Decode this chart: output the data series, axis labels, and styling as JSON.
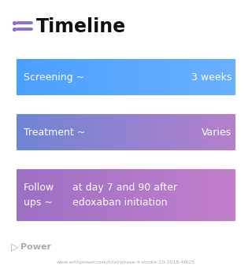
{
  "title": "Timeline",
  "title_icon_color": "#8B6FD4",
  "background_color": "#ffffff",
  "rows": [
    {
      "left_text": "Screening ~",
      "right_text": "3 weeks",
      "color_start": "#4A9FFF",
      "color_end": "#6AB0FF"
    },
    {
      "left_text": "Treatment ~",
      "right_text": "Varies",
      "color_start": "#6B85D4",
      "color_end": "#B87FCC"
    },
    {
      "left_text": "Follow\nups ~",
      "right_text": "at day 7 and 90 after\nedoxaban initiation",
      "color_start": "#9B6FC4",
      "color_end": "#C47FCC"
    }
  ],
  "footer_text": "Power",
  "footer_url": "www.withpower.com/trial/phase-4-stroke-10-2018-4f025",
  "footer_color": "#aaaaaa",
  "text_color": "#ffffff",
  "font_size_label": 9,
  "font_size_right": 9,
  "title_font_size": 17
}
